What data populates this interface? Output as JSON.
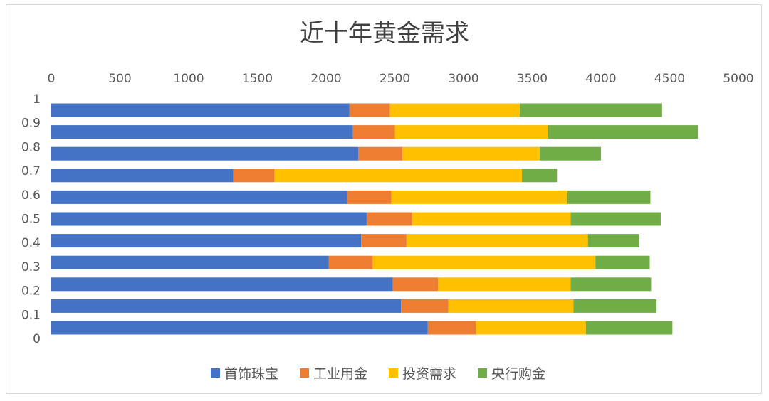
{
  "chart_data": {
    "type": "bar",
    "orientation": "horizontal",
    "stacked": true,
    "title": "近十年黄金需求",
    "x_ticks": [
      "0",
      "500",
      "1000",
      "1500",
      "2000",
      "2500",
      "3000",
      "3500",
      "4000",
      "4500",
      "5000"
    ],
    "xlim": [
      0,
      5000
    ],
    "y_ticks": [
      "0",
      "0.1",
      "0.2",
      "0.3",
      "0.4",
      "0.5",
      "0.6",
      "0.7",
      "0.8",
      "0.9",
      "1"
    ],
    "grid": false,
    "legend_position": "bottom",
    "series": [
      {
        "name": "首饰珠宝",
        "color": "#4472c4",
        "values": [
          2740,
          2545,
          2485,
          2020,
          2255,
          2295,
          2155,
          1325,
          2235,
          2195,
          2170
        ]
      },
      {
        "name": "工业用金",
        "color": "#ed7d31",
        "values": [
          350,
          345,
          330,
          320,
          330,
          330,
          320,
          300,
          320,
          305,
          295
        ]
      },
      {
        "name": "投资需求",
        "color": "#ffc000",
        "values": [
          800,
          910,
          965,
          1620,
          1320,
          1155,
          1280,
          1800,
          1000,
          1115,
          945
        ]
      },
      {
        "name": "央行购金",
        "color": "#70ad47",
        "values": [
          630,
          605,
          585,
          395,
          375,
          655,
          605,
          255,
          445,
          1090,
          1035
        ]
      }
    ]
  }
}
